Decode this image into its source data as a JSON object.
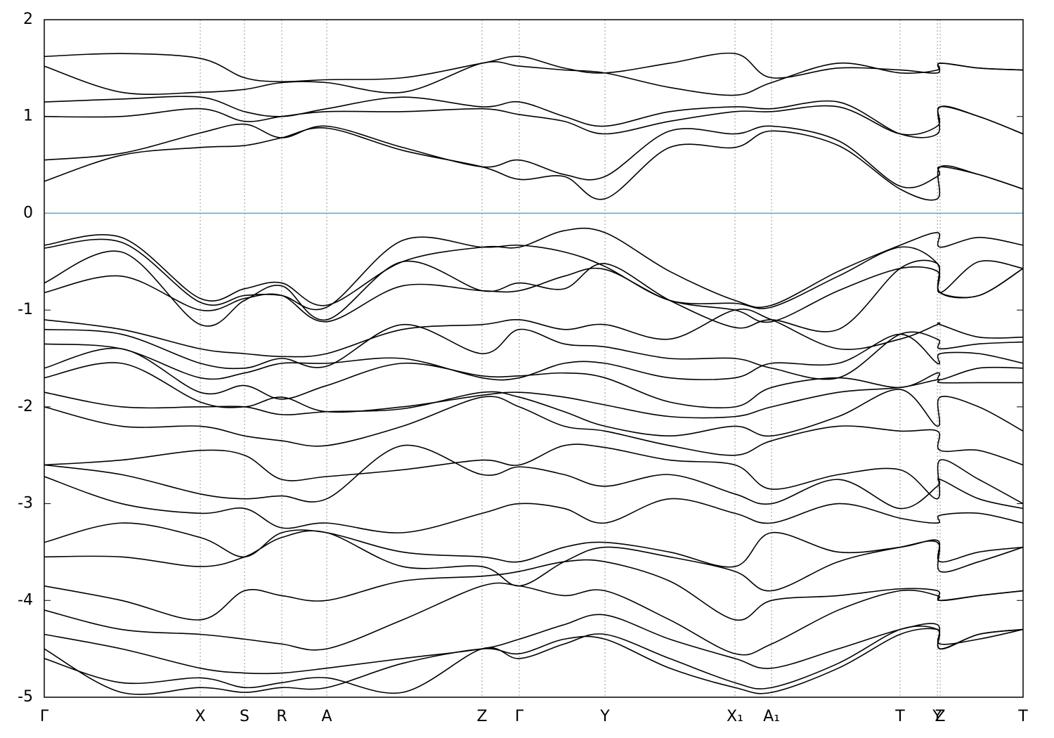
{
  "chart_data": {
    "type": "line",
    "color": "#000000",
    "fermi_level": 0,
    "fermi_color": "#4eaec8",
    "xlim": [
      0,
      13.93
    ],
    "ylim": [
      -5,
      2
    ],
    "yticks": [
      -5,
      -4,
      -3,
      -2,
      -1,
      0,
      1,
      2
    ],
    "xticks": [
      {
        "value": 0,
        "label": "Γ"
      },
      {
        "value": 2.22,
        "label": "X"
      },
      {
        "value": 2.85,
        "label": "S"
      },
      {
        "value": 3.38,
        "label": "R"
      },
      {
        "value": 4.02,
        "label": "A"
      },
      {
        "value": 6.23,
        "label": "Z"
      },
      {
        "value": 6.76,
        "label": "Γ"
      },
      {
        "value": 7.98,
        "label": "Y"
      },
      {
        "value": 9.83,
        "label": "X₁"
      },
      {
        "value": 10.35,
        "label": "A₁"
      },
      {
        "value": 12.18,
        "label": "T"
      },
      {
        "value": 12.71,
        "label": "Y"
      },
      {
        "value": 12.75,
        "label": "Z"
      },
      {
        "value": 13.93,
        "label": "T"
      }
    ],
    "grid": true,
    "x": [
      0,
      1.1,
      2.22,
      2.85,
      3.38,
      4.02,
      5.1,
      6.23,
      6.76,
      7.4,
      7.98,
      8.9,
      9.83,
      10.35,
      11.3,
      12.18,
      12.71,
      12.75,
      13.3,
      13.93
    ],
    "series": [
      {
        "values": [
          0.33,
          0.6,
          0.68,
          0.7,
          0.78,
          0.88,
          0.65,
          0.48,
          0.35,
          0.38,
          0.15,
          0.68,
          0.68,
          0.85,
          0.7,
          0.25,
          0.15,
          0.48,
          0.4,
          0.25
        ]
      },
      {
        "values": [
          0.55,
          0.62,
          0.83,
          0.92,
          0.78,
          0.9,
          0.68,
          0.48,
          0.55,
          0.4,
          0.38,
          0.85,
          0.82,
          0.9,
          0.75,
          0.28,
          0.38,
          0.48,
          0.4,
          0.25
        ]
      },
      {
        "values": [
          1.0,
          1.0,
          1.08,
          0.95,
          1.0,
          1.05,
          1.05,
          1.08,
          1.02,
          0.95,
          0.82,
          0.95,
          1.05,
          1.05,
          1.1,
          0.82,
          0.9,
          1.1,
          1.0,
          0.82
        ]
      },
      {
        "values": [
          1.15,
          1.18,
          1.2,
          1.05,
          1.0,
          1.08,
          1.2,
          1.1,
          1.15,
          1.0,
          0.9,
          1.05,
          1.1,
          1.08,
          1.15,
          0.82,
          0.82,
          1.1,
          1.0,
          0.82
        ]
      },
      {
        "values": [
          1.52,
          1.25,
          1.25,
          1.28,
          1.35,
          1.35,
          1.25,
          1.55,
          1.52,
          1.48,
          1.45,
          1.3,
          1.22,
          1.35,
          1.55,
          1.45,
          1.48,
          1.55,
          1.5,
          1.48
        ]
      },
      {
        "values": [
          1.62,
          1.65,
          1.6,
          1.4,
          1.36,
          1.38,
          1.4,
          1.55,
          1.62,
          1.5,
          1.45,
          1.55,
          1.65,
          1.4,
          1.5,
          1.48,
          1.45,
          1.55,
          1.5,
          1.48
        ]
      },
      {
        "values": [
          -0.33,
          -0.25,
          -0.88,
          -0.78,
          -0.72,
          -0.95,
          -0.5,
          -0.35,
          -0.35,
          -0.18,
          -0.2,
          -0.6,
          -0.9,
          -0.95,
          -0.6,
          -0.33,
          -0.2,
          -0.35,
          -0.25,
          -0.33
        ]
      },
      {
        "values": [
          -0.36,
          -0.3,
          -0.92,
          -0.85,
          -0.85,
          -0.97,
          -0.28,
          -0.35,
          -0.33,
          -0.4,
          -0.55,
          -0.9,
          -0.93,
          -0.97,
          -0.65,
          -0.35,
          -0.52,
          -0.82,
          -0.5,
          -0.57
        ]
      },
      {
        "values": [
          -0.72,
          -0.4,
          -1.15,
          -0.9,
          -0.75,
          -1.1,
          -0.5,
          -0.8,
          -0.72,
          -0.78,
          -0.52,
          -0.9,
          -1.18,
          -1.1,
          -1.2,
          -0.57,
          -0.52,
          -0.82,
          -0.85,
          -0.57
        ]
      },
      {
        "values": [
          -0.82,
          -0.65,
          -1.0,
          -0.88,
          -0.85,
          -1.12,
          -0.75,
          -0.8,
          -0.8,
          -0.65,
          -0.58,
          -0.9,
          -1.0,
          -1.12,
          -0.8,
          -0.57,
          -0.6,
          -0.82,
          -0.85,
          -0.57
        ]
      },
      {
        "values": [
          -1.1,
          -1.2,
          -1.4,
          -1.45,
          -1.48,
          -1.45,
          -1.2,
          -1.15,
          -1.1,
          -1.2,
          -1.15,
          -1.3,
          -1.0,
          -1.1,
          -1.4,
          -1.3,
          -1.15,
          -1.15,
          -1.28,
          -1.28
        ]
      },
      {
        "values": [
          -1.2,
          -1.25,
          -1.55,
          -1.6,
          -1.5,
          -1.58,
          -1.15,
          -1.45,
          -1.2,
          -1.35,
          -1.38,
          -1.5,
          -1.5,
          -1.6,
          -1.7,
          -1.25,
          -1.3,
          -1.4,
          -1.35,
          -1.33
        ]
      },
      {
        "values": [
          -1.35,
          -1.4,
          -1.7,
          -1.65,
          -1.55,
          -1.55,
          -1.5,
          -1.7,
          -1.7,
          -1.55,
          -1.55,
          -1.7,
          -1.7,
          -1.55,
          -1.55,
          -1.25,
          -1.55,
          -1.45,
          -1.45,
          -1.55
        ]
      },
      {
        "values": [
          -1.6,
          -1.4,
          -1.85,
          -1.78,
          -1.92,
          -1.78,
          -1.55,
          -1.68,
          -1.68,
          -1.65,
          -1.7,
          -1.95,
          -2.0,
          -1.8,
          -1.7,
          -1.8,
          -1.65,
          -1.72,
          -1.6,
          -1.6
        ]
      },
      {
        "values": [
          -1.7,
          -1.55,
          -1.95,
          -2.0,
          -1.9,
          -2.05,
          -2.0,
          -1.88,
          -1.85,
          -1.9,
          -1.98,
          -2.1,
          -2.1,
          -2.0,
          -1.85,
          -1.8,
          -1.72,
          -1.75,
          -1.75,
          -1.75
        ]
      },
      {
        "values": [
          -1.85,
          -2.0,
          -2.0,
          -2.0,
          -2.08,
          -2.05,
          -2.02,
          -1.85,
          -1.9,
          -2.05,
          -2.2,
          -2.3,
          -2.2,
          -2.3,
          -2.1,
          -1.82,
          -2.2,
          -1.9,
          -2.0,
          -2.25
        ]
      },
      {
        "values": [
          -2.0,
          -2.2,
          -2.2,
          -2.3,
          -2.35,
          -2.4,
          -2.2,
          -1.9,
          -2.0,
          -2.2,
          -2.25,
          -2.4,
          -2.5,
          -2.35,
          -2.2,
          -2.25,
          -2.25,
          -2.45,
          -2.45,
          -2.6
        ]
      },
      {
        "values": [
          -2.6,
          -2.55,
          -2.45,
          -2.5,
          -2.75,
          -2.72,
          -2.65,
          -2.55,
          -2.6,
          -2.4,
          -2.42,
          -2.55,
          -2.6,
          -2.85,
          -2.7,
          -2.65,
          -2.95,
          -2.55,
          -2.75,
          -3.0
        ]
      },
      {
        "values": [
          -2.6,
          -2.7,
          -2.9,
          -2.95,
          -2.92,
          -2.95,
          -2.4,
          -2.7,
          -2.62,
          -2.7,
          -2.82,
          -2.7,
          -2.9,
          -3.0,
          -2.75,
          -3.05,
          -2.82,
          -2.75,
          -2.95,
          -3.05
        ]
      },
      {
        "values": [
          -2.72,
          -3.0,
          -3.1,
          -3.05,
          -3.25,
          -3.2,
          -3.3,
          -3.1,
          -3.0,
          -3.05,
          -3.2,
          -2.95,
          -3.1,
          -3.2,
          -3.0,
          -3.15,
          -3.2,
          -3.12,
          -3.1,
          -3.2
        ]
      },
      {
        "values": [
          -3.4,
          -3.2,
          -3.35,
          -3.55,
          -3.3,
          -3.3,
          -3.5,
          -3.55,
          -3.6,
          -3.45,
          -3.4,
          -3.5,
          -3.65,
          -3.3,
          -3.5,
          -3.45,
          -3.38,
          -3.6,
          -3.5,
          -3.45
        ]
      },
      {
        "values": [
          -3.55,
          -3.55,
          -3.65,
          -3.55,
          -3.35,
          -3.3,
          -3.65,
          -3.65,
          -3.85,
          -3.6,
          -3.45,
          -3.55,
          -3.7,
          -3.9,
          -3.6,
          -3.45,
          -3.4,
          -3.7,
          -3.6,
          -3.45
        ]
      },
      {
        "values": [
          -3.85,
          -4.0,
          -4.2,
          -3.9,
          -3.95,
          -4.0,
          -3.8,
          -3.75,
          -3.7,
          -3.6,
          -3.6,
          -3.8,
          -4.2,
          -4.0,
          -3.95,
          -3.88,
          -3.9,
          -4.0,
          -3.95,
          -3.9
        ]
      },
      {
        "values": [
          -4.1,
          -4.3,
          -4.35,
          -4.4,
          -4.45,
          -4.5,
          -4.2,
          -3.85,
          -3.85,
          -3.95,
          -3.9,
          -4.2,
          -4.55,
          -4.45,
          -4.1,
          -3.9,
          -3.95,
          -4.0,
          -3.95,
          -3.9
        ]
      },
      {
        "values": [
          -4.35,
          -4.5,
          -4.7,
          -4.75,
          -4.75,
          -4.7,
          -4.6,
          -4.5,
          -4.4,
          -4.25,
          -4.15,
          -4.4,
          -4.6,
          -4.7,
          -4.5,
          -4.3,
          -4.25,
          -4.5,
          -4.35,
          -4.3
        ]
      },
      {
        "values": [
          -4.6,
          -4.85,
          -4.8,
          -4.9,
          -4.85,
          -4.8,
          -4.95,
          -4.5,
          -4.6,
          -4.45,
          -4.35,
          -4.6,
          -4.85,
          -4.9,
          -4.65,
          -4.3,
          -4.3,
          -4.5,
          -4.35,
          -4.3
        ]
      },
      {
        "values": [
          -4.5,
          -4.95,
          -4.9,
          -4.95,
          -4.9,
          -4.9,
          -4.65,
          -4.5,
          -4.55,
          -4.4,
          -4.4,
          -4.7,
          -4.9,
          -4.95,
          -4.7,
          -4.35,
          -4.3,
          -4.45,
          -4.4,
          -4.3
        ]
      }
    ]
  }
}
